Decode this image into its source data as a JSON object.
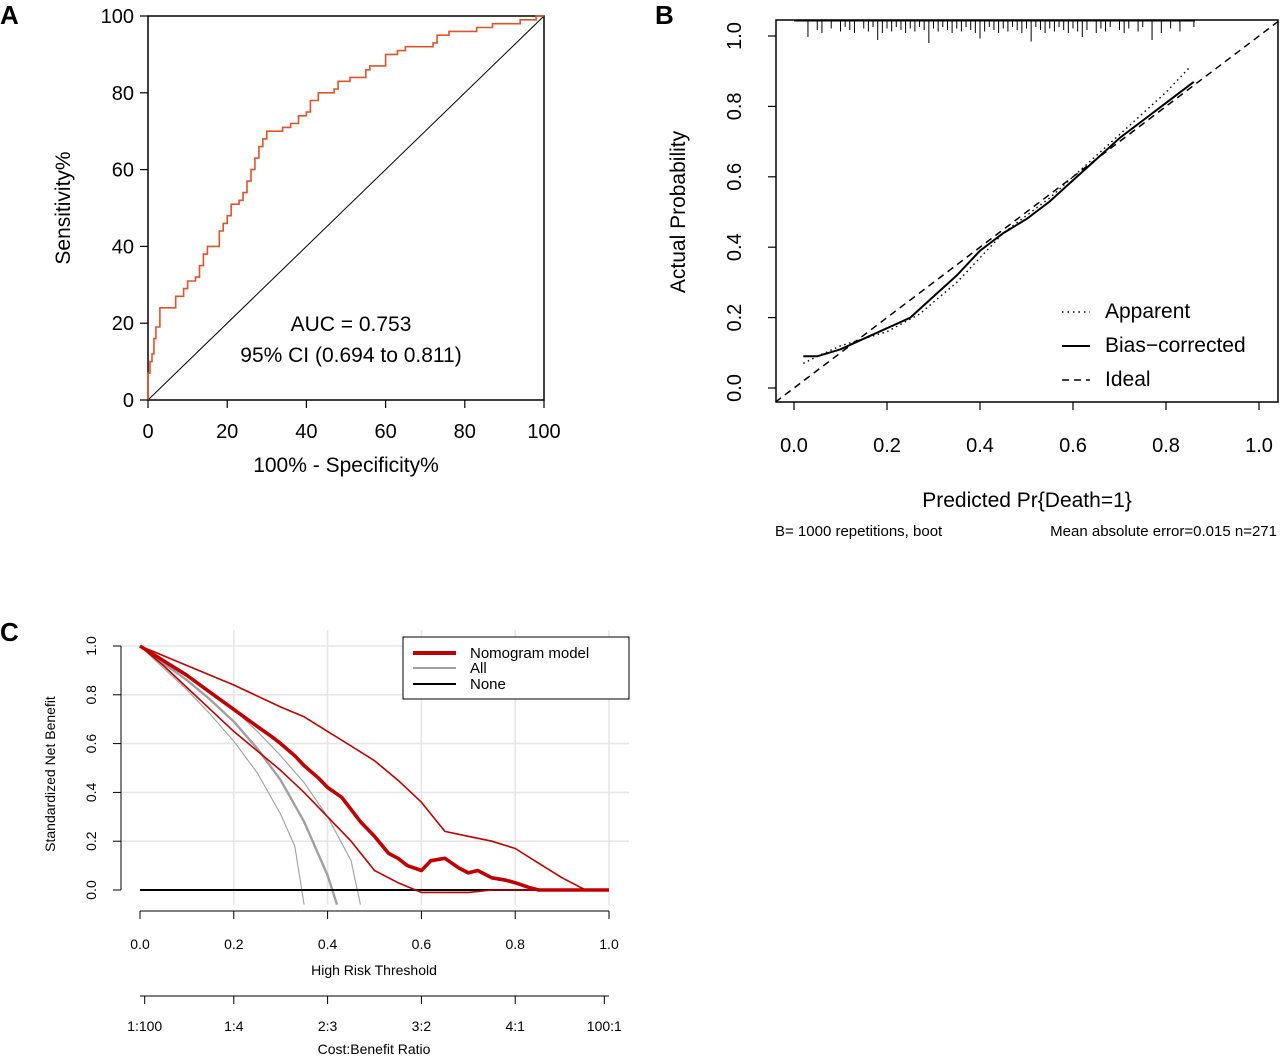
{
  "panel_labels": [
    "A",
    "B",
    "C"
  ],
  "chart_data": [
    {
      "panel": "A",
      "type": "line",
      "xlabel": "100% - Specificity%",
      "ylabel": "Sensitivity%",
      "xlim": [
        0,
        100
      ],
      "ylim": [
        0,
        100
      ],
      "xticks": [
        "0",
        "20",
        "40",
        "60",
        "80",
        "100"
      ],
      "yticks": [
        "0",
        "20",
        "40",
        "60",
        "80",
        "100"
      ],
      "annotations": [
        "AUC = 0.753",
        "95% CI (0.694 to 0.811)"
      ],
      "colors": {
        "roc": "#e0532b",
        "diagonal": "#000000"
      },
      "series": [
        {
          "points": [
            [
              0,
              0
            ],
            [
              0,
              7
            ],
            [
              0.5,
              10
            ],
            [
              1,
              12
            ],
            [
              1.5,
              16
            ],
            [
              2,
              19
            ],
            [
              3,
              21
            ],
            [
              3,
              24
            ],
            [
              7,
              24
            ],
            [
              7,
              27
            ],
            [
              9,
              29
            ],
            [
              10,
              31
            ],
            [
              12,
              32
            ],
            [
              13,
              35
            ],
            [
              14,
              38
            ],
            [
              15,
              40
            ],
            [
              17,
              40
            ],
            [
              18,
              44
            ],
            [
              19,
              46
            ],
            [
              20,
              48
            ],
            [
              21,
              51
            ],
            [
              23,
              52
            ],
            [
              24,
              54
            ],
            [
              25,
              57
            ],
            [
              26,
              60
            ],
            [
              27,
              63
            ],
            [
              28,
              66
            ],
            [
              29,
              68
            ],
            [
              30,
              70
            ],
            [
              33,
              70
            ],
            [
              34,
              71
            ],
            [
              36,
              72
            ],
            [
              38,
              74
            ],
            [
              40,
              75
            ],
            [
              41,
              78
            ],
            [
              43,
              80
            ],
            [
              47,
              81
            ],
            [
              48,
              83
            ],
            [
              51,
              84
            ],
            [
              55,
              84
            ],
            [
              55,
              86
            ],
            [
              56,
              87
            ],
            [
              60,
              90
            ],
            [
              63,
              91
            ],
            [
              65,
              92
            ],
            [
              70,
              92
            ],
            [
              72,
              93
            ],
            [
              73,
              95
            ],
            [
              76,
              96
            ],
            [
              80,
              96
            ],
            [
              83,
              97
            ],
            [
              86,
              97
            ],
            [
              87,
              98
            ],
            [
              93,
              98
            ],
            [
              94,
              99
            ],
            [
              97,
              99
            ],
            [
              98,
              100
            ],
            [
              100,
              100
            ]
          ]
        },
        {
          "points": [
            [
              0,
              0
            ],
            [
              100,
              100
            ]
          ]
        }
      ]
    },
    {
      "panel": "B",
      "type": "line",
      "xlabel": "Predicted Pr{Death=1}",
      "ylabel": "Actual Probability",
      "xlim": [
        -0.04,
        1.04
      ],
      "ylim": [
        -0.04,
        1.04
      ],
      "xticks": [
        "0.0",
        "0.2",
        "0.4",
        "0.6",
        "0.8",
        "1.0"
      ],
      "yticks": [
        "0.0",
        "0.2",
        "0.4",
        "0.6",
        "0.8",
        "1.0"
      ],
      "subtitle_left": "B= 1000 repetitions, boot",
      "subtitle_right": "Mean absolute error=0.015 n=271",
      "legend": {
        "position": "bottom-right",
        "entries": [
          "Apparent",
          "Bias−corrected",
          "Ideal"
        ]
      },
      "series": [
        {
          "name": "Apparent",
          "style": "dotted",
          "points": [
            [
              0.02,
              0.07
            ],
            [
              0.05,
              0.09
            ],
            [
              0.1,
              0.12
            ],
            [
              0.2,
              0.16
            ],
            [
              0.27,
              0.21
            ],
            [
              0.35,
              0.3
            ],
            [
              0.4,
              0.37
            ],
            [
              0.45,
              0.44
            ],
            [
              0.5,
              0.49
            ],
            [
              0.55,
              0.54
            ],
            [
              0.6,
              0.6
            ],
            [
              0.65,
              0.66
            ],
            [
              0.7,
              0.72
            ],
            [
              0.75,
              0.78
            ],
            [
              0.8,
              0.84
            ],
            [
              0.85,
              0.91
            ]
          ]
        },
        {
          "name": "Bias−corrected",
          "style": "solid",
          "points": [
            [
              0.02,
              0.09
            ],
            [
              0.05,
              0.09
            ],
            [
              0.1,
              0.11
            ],
            [
              0.15,
              0.14
            ],
            [
              0.2,
              0.17
            ],
            [
              0.25,
              0.2
            ],
            [
              0.3,
              0.26
            ],
            [
              0.35,
              0.32
            ],
            [
              0.4,
              0.39
            ],
            [
              0.45,
              0.44
            ],
            [
              0.5,
              0.48
            ],
            [
              0.55,
              0.53
            ],
            [
              0.6,
              0.59
            ],
            [
              0.65,
              0.65
            ],
            [
              0.7,
              0.71
            ],
            [
              0.75,
              0.76
            ],
            [
              0.8,
              0.81
            ],
            [
              0.86,
              0.87
            ]
          ]
        },
        {
          "name": "Ideal",
          "style": "dashed",
          "points": [
            [
              -0.04,
              -0.04
            ],
            [
              1.04,
              1.04
            ]
          ]
        }
      ],
      "rug": [
        0.03,
        0.05,
        0.06,
        0.08,
        0.1,
        0.11,
        0.12,
        0.13,
        0.15,
        0.16,
        0.17,
        0.18,
        0.19,
        0.2,
        0.21,
        0.22,
        0.23,
        0.24,
        0.25,
        0.26,
        0.27,
        0.28,
        0.29,
        0.3,
        0.31,
        0.32,
        0.33,
        0.34,
        0.35,
        0.36,
        0.37,
        0.38,
        0.39,
        0.4,
        0.41,
        0.42,
        0.43,
        0.44,
        0.45,
        0.46,
        0.47,
        0.48,
        0.49,
        0.5,
        0.51,
        0.52,
        0.53,
        0.54,
        0.55,
        0.56,
        0.57,
        0.58,
        0.59,
        0.6,
        0.61,
        0.62,
        0.63,
        0.65,
        0.66,
        0.67,
        0.68,
        0.7,
        0.71,
        0.72,
        0.74,
        0.75,
        0.77,
        0.79,
        0.81,
        0.83,
        0.86
      ]
    },
    {
      "panel": "C",
      "type": "line",
      "xlabel": "High Risk Threshold",
      "ylabel": "Standardized Net Benefit",
      "xlim": [
        0,
        1
      ],
      "ylim": [
        0,
        1
      ],
      "xticks": [
        "0.0",
        "0.2",
        "0.4",
        "0.6",
        "0.8",
        "1.0"
      ],
      "yticks": [
        "0.0",
        "0.2",
        "0.4",
        "0.6",
        "0.8",
        "1.0"
      ],
      "secondary_xlabel": "Cost:Benefit Ratio",
      "secondary_xticks": [
        "1:100",
        "1:4",
        "2:3",
        "3:2",
        "4:1",
        "100:1"
      ],
      "grid": true,
      "legend": {
        "position": "top-right",
        "entries": [
          "Nomogram model",
          "All",
          "None"
        ]
      },
      "colors": {
        "nomogram": "#c00000",
        "all": "#a0a0a0",
        "none": "#000000"
      },
      "series": [
        {
          "name": "Nomogram model",
          "style": "thick",
          "points": [
            [
              0,
              1
            ],
            [
              0.05,
              0.94
            ],
            [
              0.1,
              0.88
            ],
            [
              0.15,
              0.81
            ],
            [
              0.2,
              0.74
            ],
            [
              0.25,
              0.67
            ],
            [
              0.28,
              0.63
            ],
            [
              0.3,
              0.6
            ],
            [
              0.33,
              0.55
            ],
            [
              0.35,
              0.51
            ],
            [
              0.38,
              0.46
            ],
            [
              0.4,
              0.42
            ],
            [
              0.43,
              0.38
            ],
            [
              0.45,
              0.33
            ],
            [
              0.47,
              0.28
            ],
            [
              0.5,
              0.22
            ],
            [
              0.53,
              0.15
            ],
            [
              0.55,
              0.13
            ],
            [
              0.57,
              0.1
            ],
            [
              0.6,
              0.08
            ],
            [
              0.62,
              0.12
            ],
            [
              0.65,
              0.13
            ],
            [
              0.68,
              0.09
            ],
            [
              0.7,
              0.07
            ],
            [
              0.72,
              0.08
            ],
            [
              0.75,
              0.05
            ],
            [
              0.78,
              0.04
            ],
            [
              0.8,
              0.03
            ],
            [
              0.83,
              0.01
            ],
            [
              0.85,
              0
            ],
            [
              1,
              0
            ]
          ]
        },
        {
          "style": "thin",
          "points": [
            [
              0,
              1
            ],
            [
              0.1,
              0.92
            ],
            [
              0.2,
              0.84
            ],
            [
              0.3,
              0.75
            ],
            [
              0.35,
              0.71
            ],
            [
              0.4,
              0.65
            ],
            [
              0.45,
              0.59
            ],
            [
              0.5,
              0.53
            ],
            [
              0.55,
              0.45
            ],
            [
              0.6,
              0.36
            ],
            [
              0.65,
              0.24
            ],
            [
              0.7,
              0.22
            ],
            [
              0.75,
              0.2
            ],
            [
              0.8,
              0.17
            ],
            [
              0.85,
              0.11
            ],
            [
              0.9,
              0.05
            ],
            [
              0.95,
              0
            ],
            [
              1,
              0
            ]
          ]
        },
        {
          "style": "thin",
          "points": [
            [
              0,
              1
            ],
            [
              0.05,
              0.92
            ],
            [
              0.1,
              0.83
            ],
            [
              0.15,
              0.74
            ],
            [
              0.2,
              0.65
            ],
            [
              0.25,
              0.57
            ],
            [
              0.3,
              0.49
            ],
            [
              0.35,
              0.4
            ],
            [
              0.4,
              0.3
            ],
            [
              0.45,
              0.2
            ],
            [
              0.5,
              0.08
            ],
            [
              0.55,
              0.03
            ],
            [
              0.6,
              -0.01
            ],
            [
              0.65,
              -0.01
            ],
            [
              0.7,
              -0.01
            ],
            [
              0.75,
              0
            ],
            [
              1,
              0
            ]
          ]
        },
        {
          "name": "All",
          "style": "gray",
          "points": [
            [
              0,
              1
            ],
            [
              0.05,
              0.93
            ],
            [
              0.1,
              0.86
            ],
            [
              0.15,
              0.78
            ],
            [
              0.2,
              0.69
            ],
            [
              0.25,
              0.58
            ],
            [
              0.3,
              0.45
            ],
            [
              0.35,
              0.28
            ],
            [
              0.4,
              0.06
            ],
            [
              0.42,
              -0.06
            ]
          ]
        },
        {
          "style": "gray-thin",
          "points": [
            [
              0,
              1
            ],
            [
              0.05,
              0.91
            ],
            [
              0.1,
              0.82
            ],
            [
              0.15,
              0.72
            ],
            [
              0.2,
              0.61
            ],
            [
              0.25,
              0.48
            ],
            [
              0.3,
              0.31
            ],
            [
              0.33,
              0.18
            ],
            [
              0.35,
              -0.06
            ]
          ]
        },
        {
          "style": "gray-thin",
          "points": [
            [
              0,
              1
            ],
            [
              0.05,
              0.94
            ],
            [
              0.1,
              0.88
            ],
            [
              0.15,
              0.81
            ],
            [
              0.2,
              0.74
            ],
            [
              0.25,
              0.65
            ],
            [
              0.3,
              0.55
            ],
            [
              0.35,
              0.44
            ],
            [
              0.4,
              0.3
            ],
            [
              0.45,
              0.12
            ],
            [
              0.47,
              -0.06
            ]
          ]
        },
        {
          "name": "None",
          "style": "black",
          "points": [
            [
              0,
              0
            ],
            [
              1,
              0
            ]
          ]
        }
      ]
    }
  ]
}
